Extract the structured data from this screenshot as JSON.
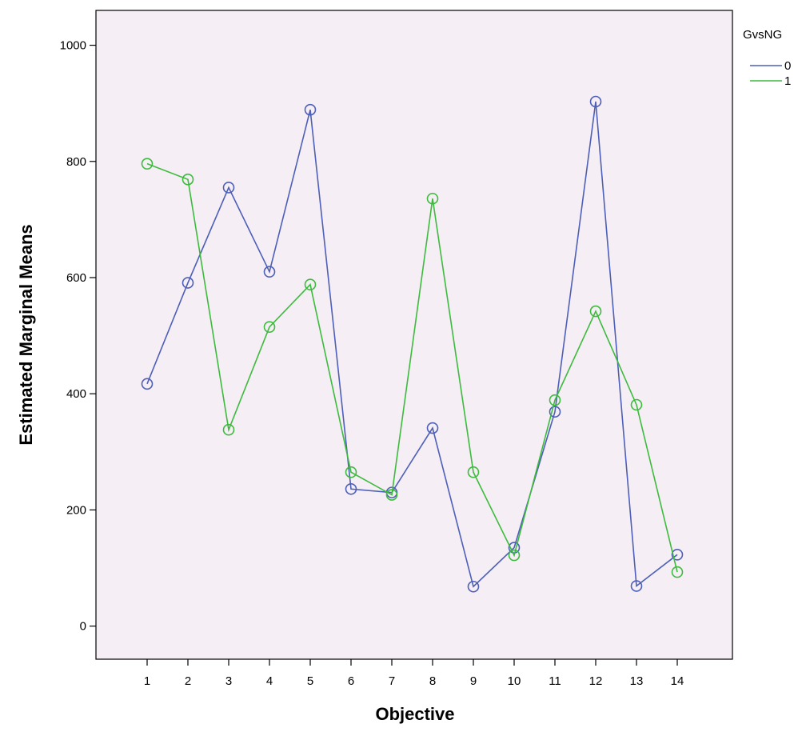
{
  "chart_data": {
    "type": "line",
    "title": "",
    "xlabel": "Objective",
    "ylabel": "Estimated Marginal Means",
    "categories": [
      "1",
      "2",
      "3",
      "4",
      "5",
      "6",
      "7",
      "8",
      "9",
      "10",
      "11",
      "12",
      "13",
      "14"
    ],
    "yticks": [
      "0",
      "200",
      "400",
      "600",
      "800",
      "1000"
    ],
    "ylim": [
      -57,
      1060
    ],
    "grid": false,
    "plot_background": "#f5eef5",
    "legend": {
      "title": "GvsNG",
      "placement": "top-right, outside plot"
    },
    "series": [
      {
        "name": "0",
        "color": "#4d5fb8",
        "marker": "open-circle",
        "values": [
          417,
          591,
          755,
          610,
          889,
          236,
          230,
          341,
          68,
          135,
          369,
          903,
          69,
          123
        ]
      },
      {
        "name": "1",
        "color": "#3dbb3d",
        "marker": "open-circle",
        "values": [
          796,
          769,
          338,
          515,
          588,
          265,
          226,
          736,
          265,
          122,
          389,
          542,
          381,
          93
        ]
      }
    ]
  }
}
